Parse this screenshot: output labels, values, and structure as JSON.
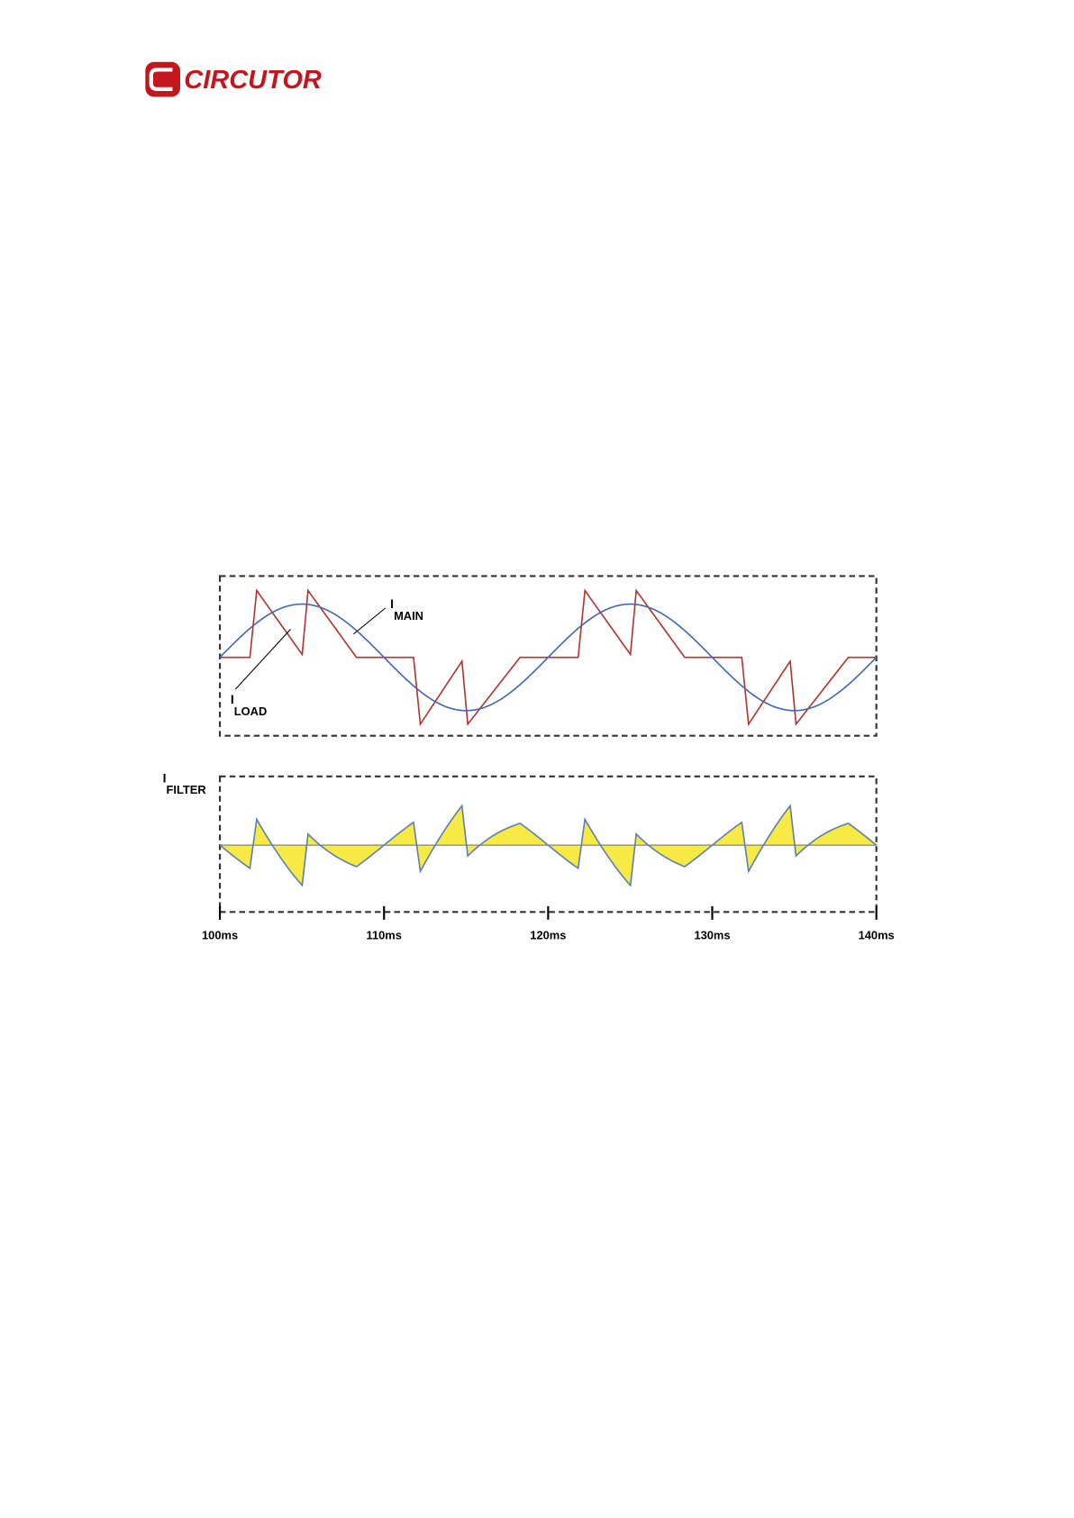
{
  "header": {
    "logo": "CIRCUTOR"
  },
  "figure": {
    "labels": [
      {
        "main": "I",
        "sub": "MAIN"
      },
      {
        "main": "I",
        "sub": "LOAD"
      },
      {
        "main": "I",
        "sub": "FILTER"
      }
    ],
    "x_ticks": [
      "100ms",
      "110ms",
      "120ms",
      "130ms",
      "140ms"
    ]
  }
}
